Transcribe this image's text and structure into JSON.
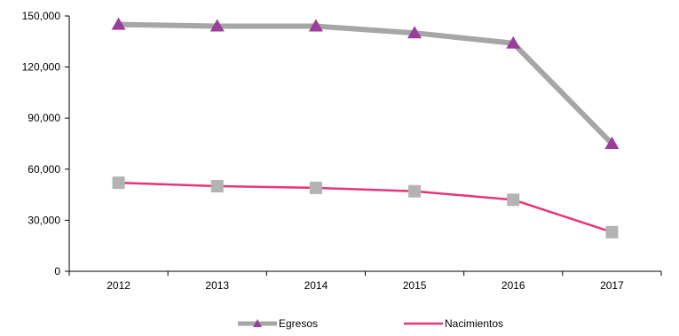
{
  "chart_data": {
    "type": "line",
    "title": "",
    "xlabel": "",
    "ylabel": "",
    "categories": [
      "2012",
      "2013",
      "2014",
      "2015",
      "2016",
      "2017"
    ],
    "ylim": [
      0,
      150000
    ],
    "yticks": [
      0,
      30000,
      60000,
      90000,
      120000,
      150000
    ],
    "ytick_labels": [
      "0",
      "30,000",
      "60,000",
      "90,000",
      "120,000",
      "150,000"
    ],
    "grid": false,
    "legend_position": "bottom",
    "series": [
      {
        "name": "Egresos",
        "values": [
          145000,
          144000,
          144000,
          140000,
          134000,
          75000
        ],
        "line_color": "#a6a6a6",
        "marker": "triangle",
        "marker_color": "#9b3d9b"
      },
      {
        "name": "Nacimientos",
        "values": [
          52000,
          50000,
          49000,
          47000,
          42000,
          23000
        ],
        "line_color": "#e8357a",
        "marker": "square",
        "marker_color": "#b3b3b3"
      }
    ]
  }
}
